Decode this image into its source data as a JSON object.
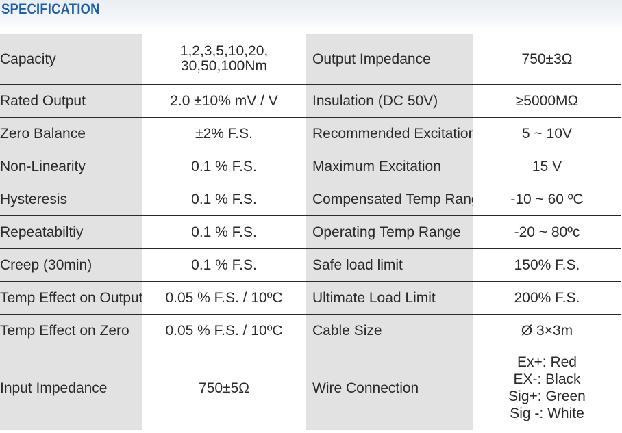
{
  "header": {
    "title": "SPECIFICATION"
  },
  "spec_rows": [
    {
      "left_label": "Capacity",
      "left_value": "1,2,3,5,10,20,\n30,50,100Nm",
      "right_label": "Output Impedance",
      "right_value": "750±3Ω"
    },
    {
      "left_label": "Rated Output",
      "left_value": "2.0 ±10% mV / V",
      "right_label": "Insulation (DC 50V)",
      "right_value": "≥5000MΩ"
    },
    {
      "left_label": "Zero Balance",
      "left_value": "±2% F.S.",
      "right_label": "Recommended Excitation",
      "right_value": "5 ~ 10V"
    },
    {
      "left_label": "Non-Linearity",
      "left_value": "0.1 % F.S.",
      "right_label": "Maximum Excitation",
      "right_value": "15 V"
    },
    {
      "left_label": "Hysteresis",
      "left_value": "0.1 % F.S.",
      "right_label": "Compensated Temp Range",
      "right_value": "-10 ~ 60 ºC"
    },
    {
      "left_label": "Repeatabiltiy",
      "left_value": "0.1 % F.S.",
      "right_label": "Operating Temp Range",
      "right_value": "-20 ~ 80ºc"
    },
    {
      "left_label": "Creep (30min)",
      "left_value": "0.1 % F.S.",
      "right_label": "Safe load limit",
      "right_value": "150% F.S."
    },
    {
      "left_label": "Temp Effect on Output",
      "left_value": "0.05 % F.S. / 10ºC",
      "right_label": "Ultimate Load Limit",
      "right_value": "200% F.S."
    },
    {
      "left_label": "Temp Effect on Zero",
      "left_value": "0.05 % F.S. / 10ºC",
      "right_label": "Cable Size",
      "right_value": "Ø 3×3m"
    },
    {
      "left_label": "Input Impedance",
      "left_value": "750±5Ω",
      "right_label": "Wire Connection",
      "right_value_lines": [
        "Ex+: Red",
        "EX-: Black",
        "Sig+: Green",
        "Sig -: White"
      ]
    }
  ]
}
